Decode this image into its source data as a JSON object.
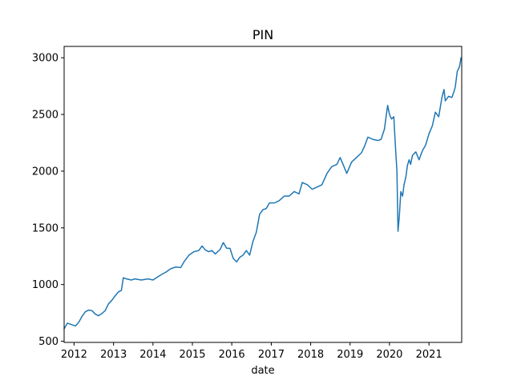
{
  "chart_data": {
    "type": "line",
    "title": "PIN",
    "xlabel": "date",
    "ylabel": "",
    "grid": false,
    "legend": "none",
    "xlim": [
      "2011-10-01",
      "2021-10-31"
    ],
    "ylim": [
      490,
      3100
    ],
    "x_ticks": [
      "2012",
      "2013",
      "2014",
      "2015",
      "2016",
      "2017",
      "2018",
      "2019",
      "2020",
      "2021"
    ],
    "y_ticks": [
      500,
      1000,
      1500,
      2000,
      2500,
      3000
    ],
    "series": [
      {
        "color": "#1f77b4",
        "points": [
          [
            "2011-10-01",
            610
          ],
          [
            "2011-11-01",
            660
          ],
          [
            "2011-12-15",
            645
          ],
          [
            "2012-01-15",
            635
          ],
          [
            "2012-02-15",
            670
          ],
          [
            "2012-03-15",
            720
          ],
          [
            "2012-04-15",
            760
          ],
          [
            "2012-05-15",
            775
          ],
          [
            "2012-06-15",
            770
          ],
          [
            "2012-07-15",
            740
          ],
          [
            "2012-08-15",
            725
          ],
          [
            "2012-09-15",
            745
          ],
          [
            "2012-10-15",
            770
          ],
          [
            "2012-11-15",
            830
          ],
          [
            "2012-12-15",
            860
          ],
          [
            "2013-01-15",
            900
          ],
          [
            "2013-02-15",
            935
          ],
          [
            "2013-03-15",
            950
          ],
          [
            "2013-04-01",
            1060
          ],
          [
            "2013-05-01",
            1050
          ],
          [
            "2013-06-15",
            1040
          ],
          [
            "2013-07-15",
            1050
          ],
          [
            "2013-09-15",
            1040
          ],
          [
            "2013-11-15",
            1050
          ],
          [
            "2014-01-01",
            1040
          ],
          [
            "2014-02-01",
            1060
          ],
          [
            "2014-03-15",
            1085
          ],
          [
            "2014-05-01",
            1110
          ],
          [
            "2014-06-15",
            1140
          ],
          [
            "2014-08-01",
            1155
          ],
          [
            "2014-09-15",
            1150
          ],
          [
            "2014-10-15",
            1200
          ],
          [
            "2014-12-01",
            1260
          ],
          [
            "2015-01-15",
            1290
          ],
          [
            "2015-03-01",
            1300
          ],
          [
            "2015-04-01",
            1340
          ],
          [
            "2015-05-01",
            1305
          ],
          [
            "2015-06-01",
            1290
          ],
          [
            "2015-07-01",
            1300
          ],
          [
            "2015-08-01",
            1270
          ],
          [
            "2015-09-15",
            1310
          ],
          [
            "2015-10-15",
            1370
          ],
          [
            "2015-11-15",
            1320
          ],
          [
            "2015-12-15",
            1320
          ],
          [
            "2016-01-15",
            1230
          ],
          [
            "2016-02-15",
            1200
          ],
          [
            "2016-03-15",
            1240
          ],
          [
            "2016-04-15",
            1260
          ],
          [
            "2016-05-15",
            1300
          ],
          [
            "2016-06-15",
            1260
          ],
          [
            "2016-07-15",
            1380
          ],
          [
            "2016-08-15",
            1460
          ],
          [
            "2016-09-15",
            1620
          ],
          [
            "2016-10-15",
            1660
          ],
          [
            "2016-11-15",
            1670
          ],
          [
            "2016-12-15",
            1720
          ],
          [
            "2017-02-01",
            1720
          ],
          [
            "2017-03-15",
            1740
          ],
          [
            "2017-05-01",
            1780
          ],
          [
            "2017-06-15",
            1780
          ],
          [
            "2017-08-01",
            1820
          ],
          [
            "2017-09-15",
            1800
          ],
          [
            "2017-10-15",
            1900
          ],
          [
            "2017-12-01",
            1880
          ],
          [
            "2018-01-15",
            1840
          ],
          [
            "2018-03-01",
            1860
          ],
          [
            "2018-04-15",
            1880
          ],
          [
            "2018-06-01",
            1980
          ],
          [
            "2018-07-15",
            2040
          ],
          [
            "2018-09-01",
            2060
          ],
          [
            "2018-10-01",
            2120
          ],
          [
            "2018-11-01",
            2050
          ],
          [
            "2018-12-01",
            1980
          ],
          [
            "2019-01-15",
            2080
          ],
          [
            "2019-03-01",
            2120
          ],
          [
            "2019-04-15",
            2160
          ],
          [
            "2019-05-15",
            2220
          ],
          [
            "2019-06-15",
            2300
          ],
          [
            "2019-08-01",
            2280
          ],
          [
            "2019-09-15",
            2270
          ],
          [
            "2019-10-15",
            2280
          ],
          [
            "2019-11-15",
            2370
          ],
          [
            "2019-12-15",
            2580
          ],
          [
            "2020-01-01",
            2500
          ],
          [
            "2020-01-20",
            2460
          ],
          [
            "2020-02-10",
            2480
          ],
          [
            "2020-02-25",
            2220
          ],
          [
            "2020-03-10",
            2000
          ],
          [
            "2020-03-20",
            1470
          ],
          [
            "2020-04-01",
            1600
          ],
          [
            "2020-04-15",
            1820
          ],
          [
            "2020-05-01",
            1780
          ],
          [
            "2020-05-15",
            1880
          ],
          [
            "2020-06-01",
            1950
          ],
          [
            "2020-06-15",
            2050
          ],
          [
            "2020-07-01",
            2100
          ],
          [
            "2020-07-15",
            2060
          ],
          [
            "2020-08-01",
            2140
          ],
          [
            "2020-09-01",
            2170
          ],
          [
            "2020-10-01",
            2100
          ],
          [
            "2020-11-01",
            2180
          ],
          [
            "2020-12-01",
            2230
          ],
          [
            "2021-01-01",
            2330
          ],
          [
            "2021-02-01",
            2400
          ],
          [
            "2021-03-01",
            2520
          ],
          [
            "2021-04-01",
            2480
          ],
          [
            "2021-05-01",
            2650
          ],
          [
            "2021-05-20",
            2720
          ],
          [
            "2021-06-01",
            2620
          ],
          [
            "2021-07-01",
            2660
          ],
          [
            "2021-08-01",
            2650
          ],
          [
            "2021-08-20",
            2700
          ],
          [
            "2021-09-01",
            2740
          ],
          [
            "2021-09-20",
            2880
          ],
          [
            "2021-10-10",
            2920
          ],
          [
            "2021-10-25",
            3000
          ]
        ]
      }
    ]
  }
}
